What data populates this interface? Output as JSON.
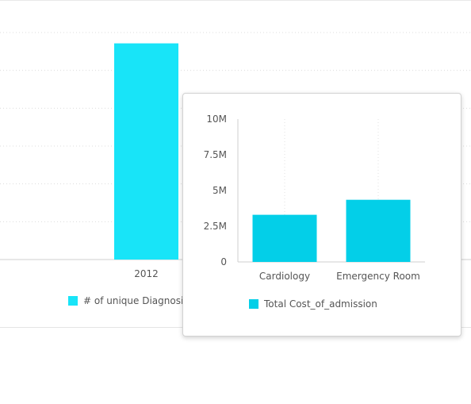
{
  "chart_data": [
    {
      "type": "bar",
      "categories": [
        "2012"
      ],
      "series": [
        {
          "name": "# of unique Diagnosi",
          "values": [
            100
          ],
          "color": "#18e4f8"
        }
      ],
      "ylim": [
        0,
        105
      ],
      "grid": true,
      "legend_placement": "bottom-left"
    },
    {
      "type": "bar",
      "categories": [
        "Cardiology",
        "Emergency Room"
      ],
      "series": [
        {
          "name": "Total Cost_of_admission",
          "values": [
            3300000,
            4350000
          ],
          "color": "#03cfe8"
        }
      ],
      "yticks": [
        0,
        2500000,
        5000000,
        7500000,
        10000000
      ],
      "ytick_labels": [
        "0",
        "2.5M",
        "5M",
        "7.5M",
        "10M"
      ],
      "ylim": [
        0,
        10000000
      ],
      "grid": true,
      "legend_placement": "bottom"
    }
  ]
}
